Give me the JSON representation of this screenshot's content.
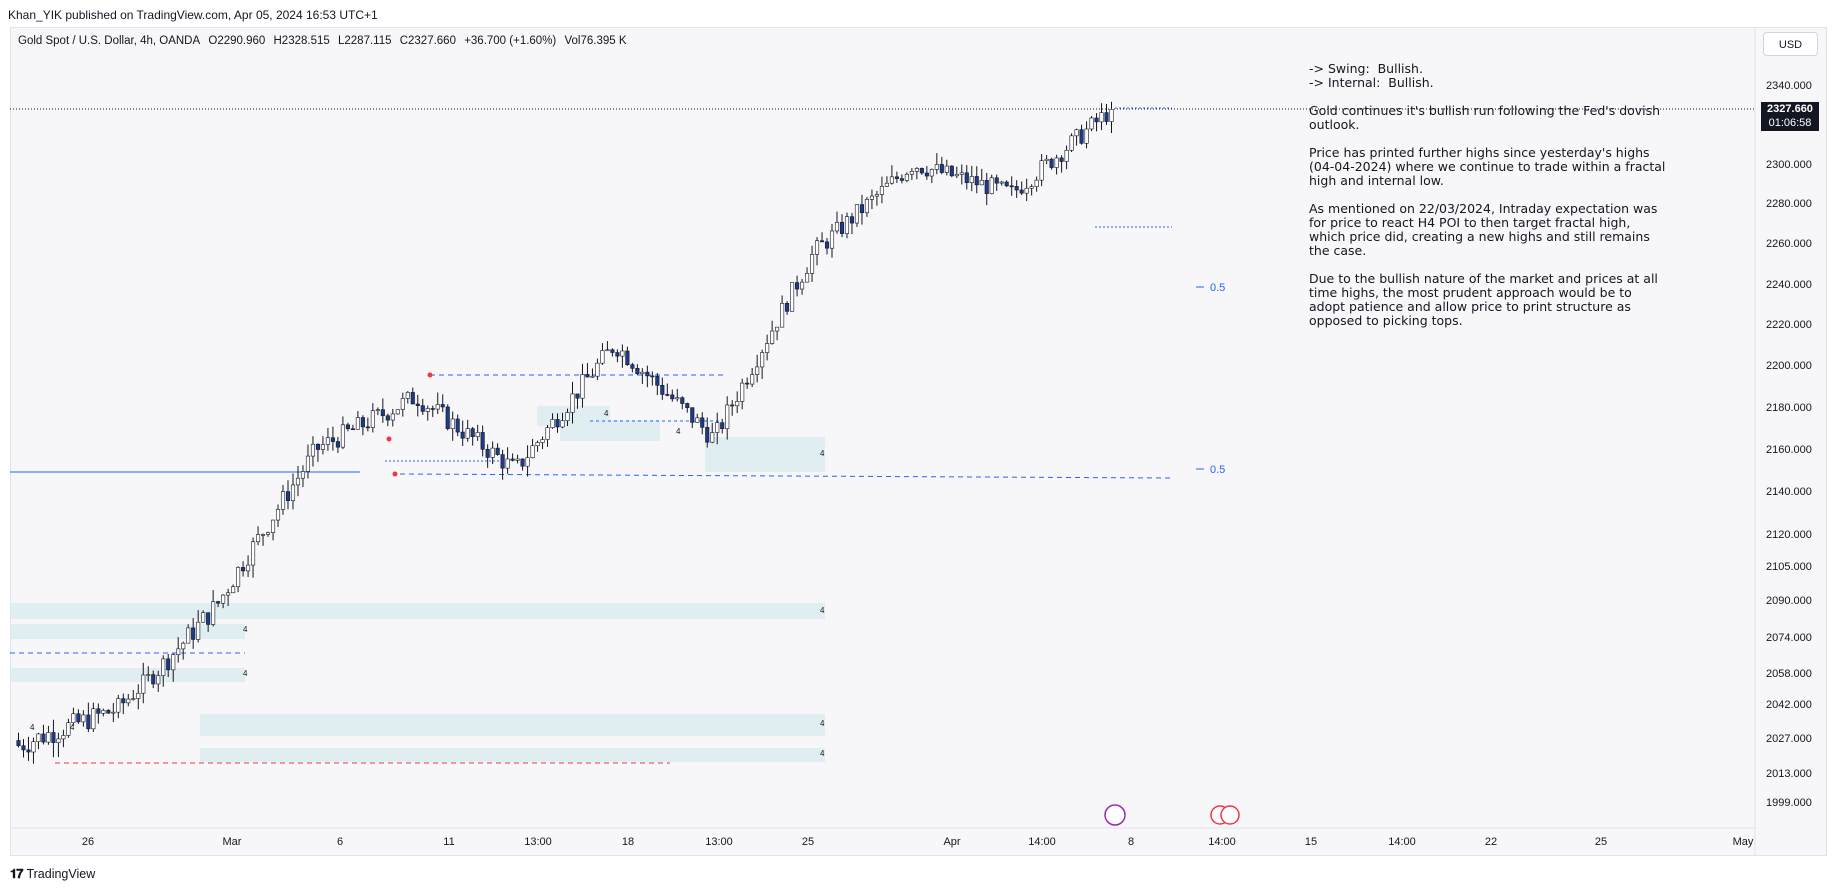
{
  "header": {
    "published": "Khan_YIK published on TradingView.com, Apr 05, 2024 16:53 UTC+1"
  },
  "legend": {
    "symbol": "Gold Spot / U.S. Dollar, 4h, OANDA",
    "open": "O2290.960",
    "high": "H2328.515",
    "low": "L2287.115",
    "close": "C2327.660",
    "change": "+36.700 (+1.60%)",
    "volume": "Vol76.395 K"
  },
  "currency_button": "USD",
  "last_price": {
    "value": "2327.660",
    "countdown": "01:06:58"
  },
  "notes": [
    "-> Swing:  Bullish.\n-> Internal:  Bullish.",
    "Gold continues it's bullish run following the Fed's dovish outlook.",
    "Price has printed further highs since yesterday's highs (04-04-2024) where we continue to trade within a fractal high and internal low.",
    "As mentioned on 22/03/2024, Intraday expectation was for price to react H4 POI to then target fractal high, which price did, creating a new highs and still remains the case.",
    "Due to the bullish nature of the market and prices at all time highs, the most prudent approach would be to adopt patience and allow price to print structure as opposed to picking tops."
  ],
  "footer": {
    "brand": "TradingView"
  },
  "colors": {
    "bull": "#ffffff",
    "bear": "#1e3a8a",
    "wick": "#131722",
    "zone": "#dcecf0",
    "level": "#2962ff",
    "low_level": "#f23645"
  },
  "chart_data": {
    "type": "candlestick",
    "y_ticks": [
      "2340.000",
      "2300.000",
      "2280.000",
      "2260.000",
      "2240.000",
      "2220.000",
      "2200.000",
      "2180.000",
      "2160.000",
      "2140.000",
      "2120.000",
      "2105.000",
      "2090.000",
      "2074.000",
      "2058.000",
      "2042.000",
      "2027.000",
      "2013.000",
      "1999.000"
    ],
    "x_ticks": [
      "26",
      "Mar",
      "6",
      "11",
      "13:00",
      "18",
      "13:00",
      "25",
      "Apr",
      "14:00",
      "8",
      "14:00",
      "15",
      "14:00",
      "22",
      "25",
      "May"
    ],
    "fib_labels": [
      "0.5",
      "0.5"
    ],
    "zone_labels": [
      "4",
      "4",
      "4",
      "4",
      "4",
      "4",
      "4",
      "4",
      "4",
      "4"
    ],
    "price_range": {
      "first_close": 2026,
      "key_points": [
        {
          "t": "Feb 23",
          "price": 2024
        },
        {
          "t": "Mar 1",
          "price": 2040
        },
        {
          "t": "Mar 4",
          "price": 2088
        },
        {
          "t": "Mar 8",
          "price": 2160
        },
        {
          "t": "Mar 11",
          "price": 2185
        },
        {
          "t": "Mar 19",
          "price": 2150
        },
        {
          "t": "Mar 21",
          "price": 2210
        },
        {
          "t": "Mar 25",
          "price": 2165
        },
        {
          "t": "Apr 1",
          "price": 2255
        },
        {
          "t": "Apr 3",
          "price": 2300
        },
        {
          "t": "Apr 4",
          "price": 2285
        },
        {
          "t": "Apr 5",
          "price": 2327.66
        }
      ]
    }
  }
}
